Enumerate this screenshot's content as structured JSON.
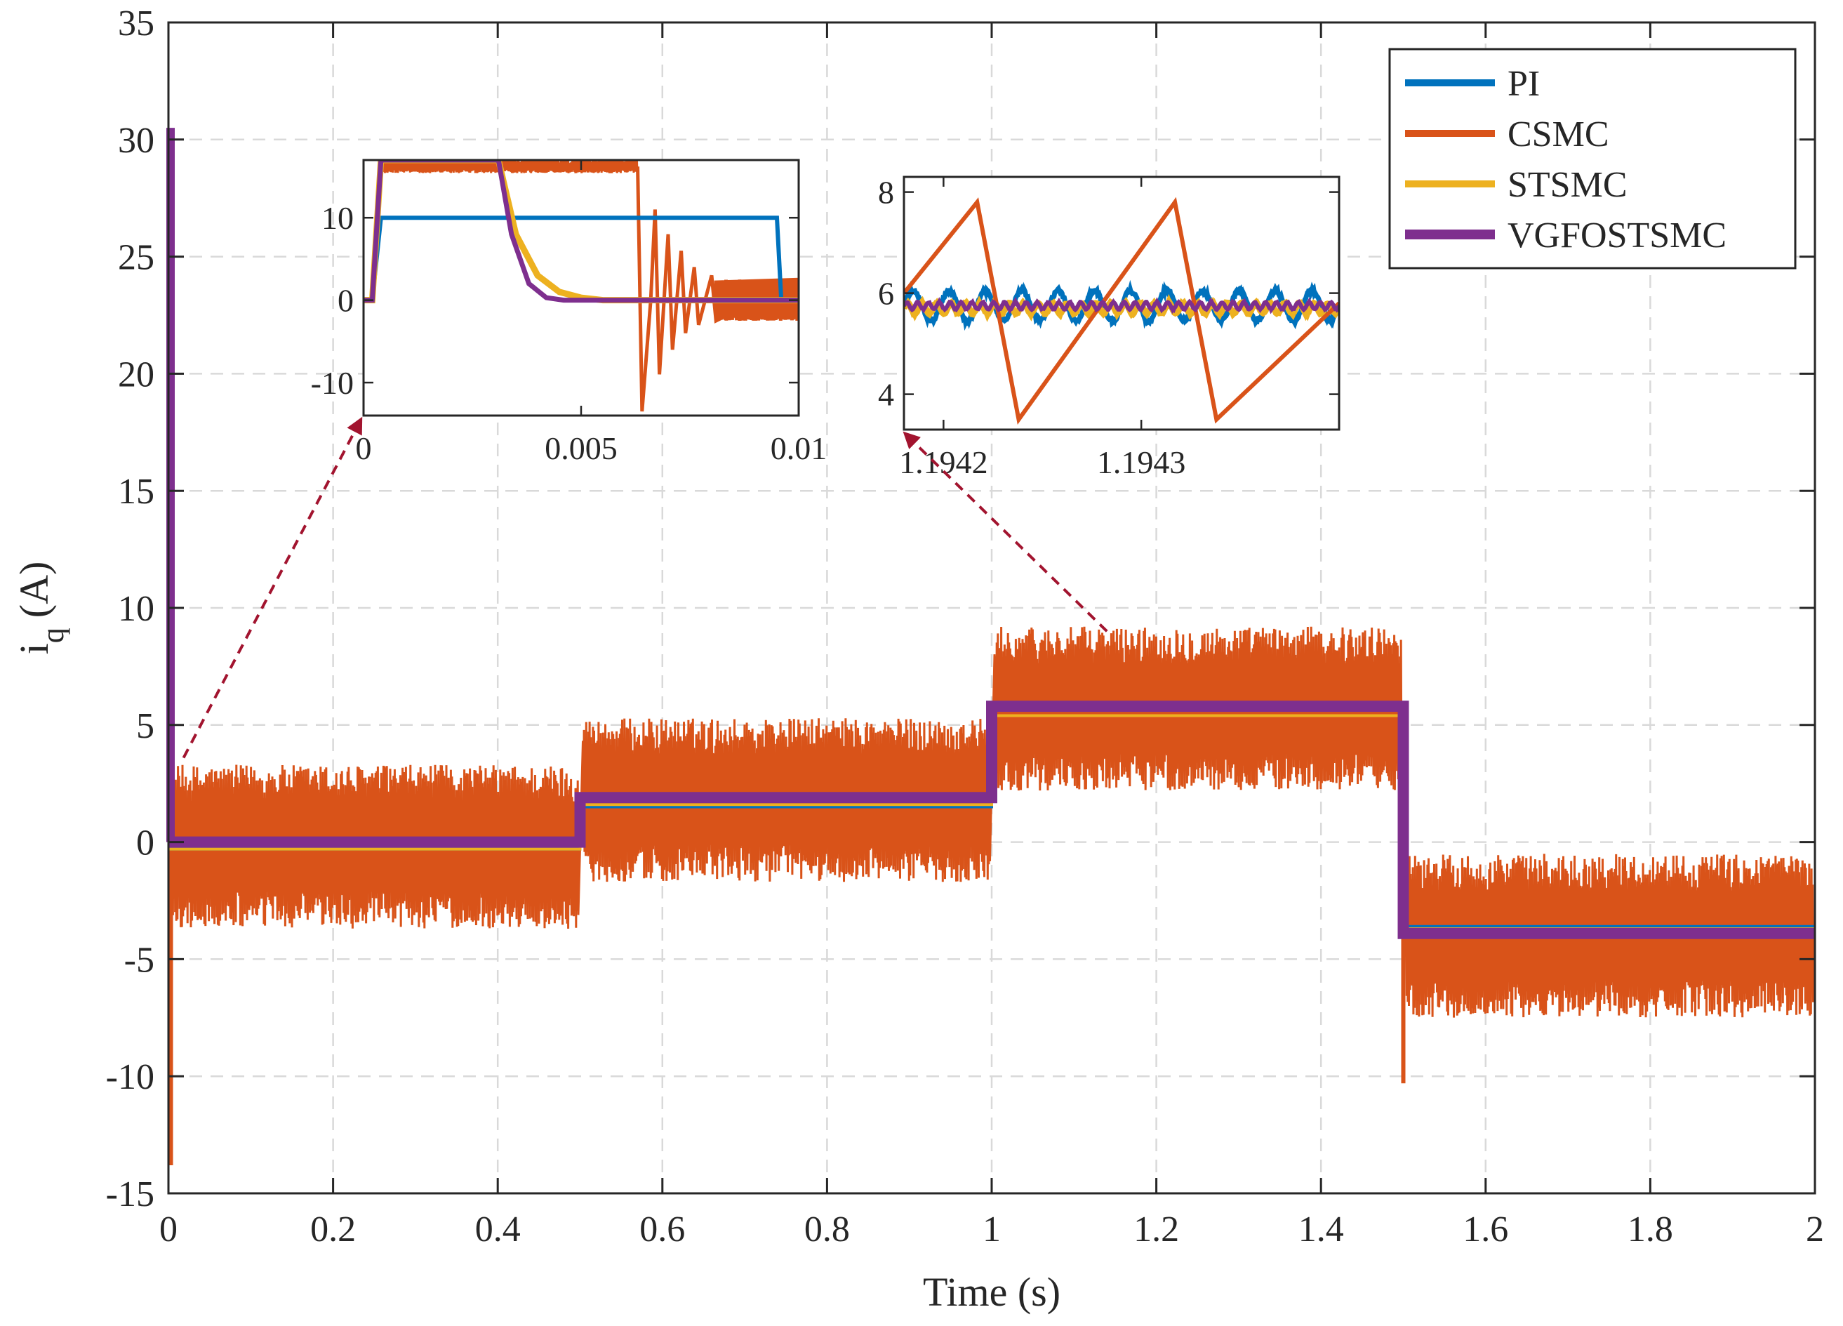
{
  "chart_data": {
    "type": "line",
    "title": "",
    "xlabel": "Time (s)",
    "ylabel_main": "i",
    "ylabel_sub": "q",
    "ylabel_unit": "(A)",
    "xlim": [
      0,
      2
    ],
    "ylim": [
      -15,
      35
    ],
    "xticks": [
      0,
      0.2,
      0.4,
      0.6,
      0.8,
      1,
      1.2,
      1.4,
      1.6,
      1.8,
      2
    ],
    "xtick_labels": [
      "0",
      "0.2",
      "0.4",
      "0.6",
      "0.8",
      "1",
      "1.2",
      "1.4",
      "1.6",
      "1.8",
      "2"
    ],
    "yticks": [
      -15,
      -10,
      -5,
      0,
      5,
      10,
      15,
      20,
      25,
      30,
      35
    ],
    "ytick_labels": [
      "-15",
      "-10",
      "-5",
      "0",
      "5",
      "10",
      "15",
      "20",
      "25",
      "30",
      "35"
    ],
    "grid": true,
    "legend_position": "top-right",
    "series": [
      {
        "name": "PI",
        "color": "#0072BD",
        "segments": [
          {
            "x0": 0.0,
            "x1": 0.5,
            "y": -0.3
          },
          {
            "x0": 0.5,
            "x1": 1.0,
            "y": 1.5
          },
          {
            "x0": 1.0,
            "x1": 1.5,
            "y": 5.4
          },
          {
            "x0": 1.5,
            "x1": 2.0,
            "y": -3.6
          }
        ]
      },
      {
        "name": "CSMC",
        "color": "#D95319",
        "ripple_amplitude": 3.5,
        "segments": [
          {
            "x0": 0.0,
            "x1": 0.5,
            "y": -0.2
          },
          {
            "x0": 0.5,
            "x1": 1.0,
            "y": 1.8
          },
          {
            "x0": 1.0,
            "x1": 1.5,
            "y": 5.7
          },
          {
            "x0": 1.5,
            "x1": 2.0,
            "y": -4.0
          }
        ],
        "spikes": [
          {
            "x": 0.003,
            "min": -13.8,
            "max": 15.5
          },
          {
            "x": 1.5,
            "min": -10.3,
            "max": 0.0
          }
        ]
      },
      {
        "name": "STSMC",
        "color": "#EDB120",
        "segments": [
          {
            "x0": 0.0,
            "x1": 0.5,
            "y": -0.3
          },
          {
            "x0": 0.5,
            "x1": 1.0,
            "y": 1.6
          },
          {
            "x0": 1.0,
            "x1": 1.5,
            "y": 5.4
          },
          {
            "x0": 1.5,
            "x1": 2.0,
            "y": -3.7
          }
        ]
      },
      {
        "name": "VGFOSTSMC",
        "color": "#7E2F8E",
        "segments": [
          {
            "x0": 0.0,
            "x1": 0.5,
            "y": 0.0
          },
          {
            "x0": 0.5,
            "x1": 1.0,
            "y": 1.9
          },
          {
            "x0": 1.0,
            "x1": 1.5,
            "y": 5.8
          },
          {
            "x0": 1.5,
            "x1": 2.0,
            "y": -3.9
          }
        ],
        "spikes": [
          {
            "x": 0.0,
            "min": 0.0,
            "max": 30.5
          }
        ]
      }
    ],
    "insets": [
      {
        "name": "startup-zoom",
        "xlim": [
          0,
          0.01
        ],
        "ylim": [
          -14,
          17
        ],
        "xticks": [
          0,
          0.005,
          0.01
        ],
        "xtick_labels": [
          "0",
          "0.005",
          "0.01"
        ],
        "yticks": [
          -10,
          0,
          10
        ],
        "ytick_labels": [
          "-10",
          "0",
          "10"
        ],
        "arrow_target": {
          "x": 0.003,
          "y": 3
        },
        "series": {
          "PI": [
            [
              0,
              0
            ],
            [
              0.0002,
              0
            ],
            [
              0.0004,
              10
            ],
            [
              0.0095,
              10
            ],
            [
              0.0096,
              0
            ],
            [
              0.01,
              0
            ]
          ],
          "CSMC": [
            [
              0,
              0
            ],
            [
              0.0002,
              0
            ],
            [
              0.0004,
              16
            ],
            [
              0.0063,
              16
            ],
            [
              0.0064,
              -13.5
            ],
            [
              0.0066,
              0
            ],
            [
              0.0067,
              11
            ],
            [
              0.0068,
              -9
            ],
            [
              0.007,
              8
            ],
            [
              0.0071,
              -6
            ],
            [
              0.0073,
              6
            ],
            [
              0.0074,
              -4
            ],
            [
              0.0076,
              4
            ],
            [
              0.0077,
              -3
            ],
            [
              0.008,
              3
            ],
            [
              0.0081,
              -2.5
            ],
            [
              0.01,
              2.5
            ]
          ],
          "STSMC": [
            [
              0,
              0
            ],
            [
              0.0002,
              0
            ],
            [
              0.0004,
              17
            ],
            [
              0.0031,
              17
            ],
            [
              0.0035,
              8
            ],
            [
              0.004,
              3
            ],
            [
              0.0045,
              1
            ],
            [
              0.005,
              0.3
            ],
            [
              0.0055,
              0
            ],
            [
              0.01,
              0
            ]
          ],
          "VGFOSTSMC": [
            [
              0,
              0
            ],
            [
              0.0002,
              0
            ],
            [
              0.0004,
              17
            ],
            [
              0.0031,
              17
            ],
            [
              0.0034,
              8
            ],
            [
              0.0038,
              2
            ],
            [
              0.0042,
              0.3
            ],
            [
              0.0046,
              0
            ],
            [
              0.01,
              0
            ]
          ]
        }
      },
      {
        "name": "steady-state-zoom",
        "xlim": [
          1.19418,
          1.1944
        ],
        "ylim": [
          3.3,
          8.3
        ],
        "xticks": [
          1.1942,
          1.1943
        ],
        "xtick_labels": [
          "1.1942",
          "1.1943"
        ],
        "yticks": [
          4,
          6,
          8
        ],
        "ytick_labels": [
          "4",
          "6",
          "8"
        ],
        "arrow_target": {
          "x": 1.14,
          "y": 9
        },
        "series": {
          "PI": {
            "mean": 5.75,
            "amplitude": 0.35,
            "cycles": 12
          },
          "CSMC": [
            [
              1.19418,
              6.0
            ],
            [
              1.194217,
              7.8
            ],
            [
              1.194238,
              3.5
            ],
            [
              1.194317,
              7.8
            ],
            [
              1.194338,
              3.5
            ],
            [
              1.1944,
              5.8
            ]
          ],
          "STSMC": {
            "mean": 5.7,
            "amplitude": 0.12,
            "cycles": 30
          },
          "VGFOSTSMC": {
            "mean": 5.75,
            "amplitude": 0.08,
            "cycles": 40
          }
        }
      }
    ]
  }
}
